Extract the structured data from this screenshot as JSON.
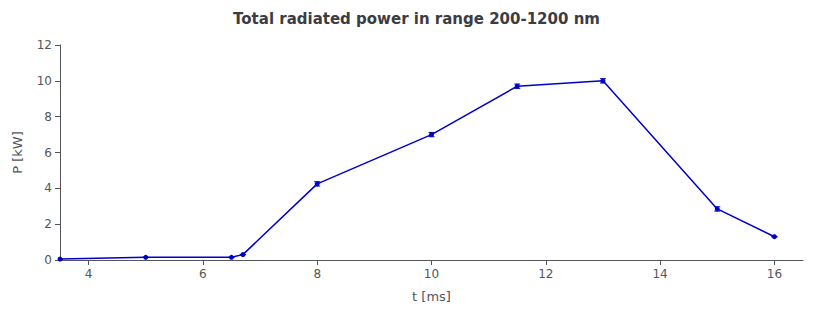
{
  "chart_data": {
    "type": "line",
    "title": "Total radiated power in range 200-1200 nm",
    "xlabel": "t [ms]",
    "ylabel": "P [kW]",
    "x": [
      3.5,
      5.0,
      6.5,
      6.7,
      8.0,
      10.0,
      11.5,
      13.0,
      15.0,
      16.0
    ],
    "values": [
      0.05,
      0.15,
      0.15,
      0.3,
      4.25,
      7.0,
      9.7,
      10.0,
      2.85,
      1.3
    ],
    "yerr": [
      0.0,
      0.0,
      0.0,
      0.0,
      0.12,
      0.12,
      0.12,
      0.12,
      0.12,
      0.0
    ],
    "color": "#0000CC",
    "marker": "circle",
    "xlim": [
      3.5,
      16.5
    ],
    "ylim": [
      0,
      12
    ],
    "xticks": [
      4,
      6,
      8,
      10,
      12,
      14,
      16
    ],
    "yticks": [
      0,
      2,
      4,
      6,
      8,
      10,
      12
    ],
    "grid": false
  }
}
